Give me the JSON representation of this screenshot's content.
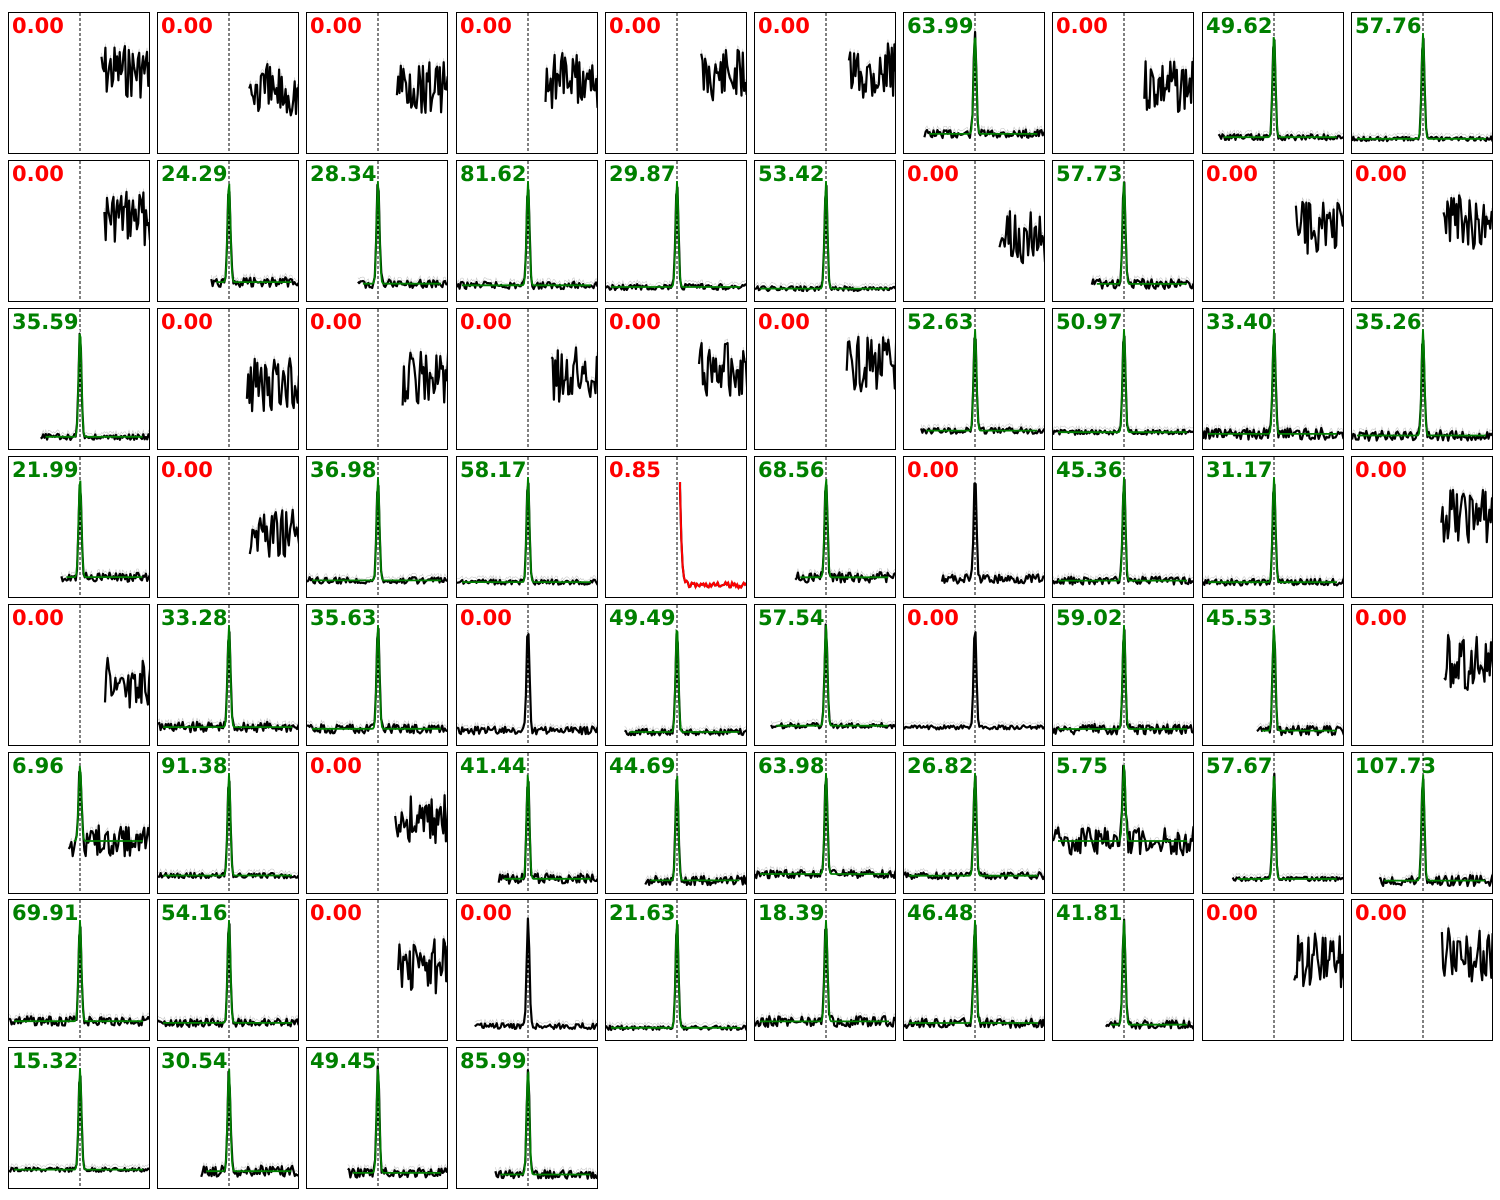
{
  "colors": {
    "good": "#008000",
    "bad": "#ff0000",
    "trace": "#000000",
    "noise_band": "#c8c8c8",
    "marker": "#000000"
  },
  "chart_data": {
    "type": "line",
    "layout": "grid of small multiples, 10 columns x 8 rows, 74 panels",
    "title": "",
    "axes": {
      "ticks": "none",
      "x_marker": "dashed vertical line at center"
    },
    "panels": [
      {
        "value": "0.00",
        "status": "fail",
        "shape": "late"
      },
      {
        "value": "0.00",
        "status": "fail",
        "shape": "late"
      },
      {
        "value": "0.00",
        "status": "fail",
        "shape": "late"
      },
      {
        "value": "0.00",
        "status": "fail",
        "shape": "late"
      },
      {
        "value": "0.00",
        "status": "fail",
        "shape": "late"
      },
      {
        "value": "0.00",
        "status": "fail",
        "shape": "late"
      },
      {
        "value": "63.99",
        "status": "pass",
        "shape": "peak"
      },
      {
        "value": "0.00",
        "status": "fail",
        "shape": "late"
      },
      {
        "value": "49.62",
        "status": "pass",
        "shape": "peak"
      },
      {
        "value": "57.76",
        "status": "pass",
        "shape": "peak"
      },
      {
        "value": "0.00",
        "status": "fail",
        "shape": "late"
      },
      {
        "value": "24.29",
        "status": "pass",
        "shape": "peak"
      },
      {
        "value": "28.34",
        "status": "pass",
        "shape": "peak"
      },
      {
        "value": "81.62",
        "status": "pass",
        "shape": "peak"
      },
      {
        "value": "29.87",
        "status": "pass",
        "shape": "peak"
      },
      {
        "value": "53.42",
        "status": "pass",
        "shape": "peak"
      },
      {
        "value": "0.00",
        "status": "fail",
        "shape": "late"
      },
      {
        "value": "57.73",
        "status": "pass",
        "shape": "peak"
      },
      {
        "value": "0.00",
        "status": "fail",
        "shape": "late"
      },
      {
        "value": "0.00",
        "status": "fail",
        "shape": "late"
      },
      {
        "value": "35.59",
        "status": "pass",
        "shape": "peak"
      },
      {
        "value": "0.00",
        "status": "fail",
        "shape": "late"
      },
      {
        "value": "0.00",
        "status": "fail",
        "shape": "late"
      },
      {
        "value": "0.00",
        "status": "fail",
        "shape": "late"
      },
      {
        "value": "0.00",
        "status": "fail",
        "shape": "late"
      },
      {
        "value": "0.00",
        "status": "fail",
        "shape": "late"
      },
      {
        "value": "52.63",
        "status": "pass",
        "shape": "peak"
      },
      {
        "value": "50.97",
        "status": "pass",
        "shape": "peak"
      },
      {
        "value": "33.40",
        "status": "pass",
        "shape": "peak"
      },
      {
        "value": "35.26",
        "status": "pass",
        "shape": "peak"
      },
      {
        "value": "21.99",
        "status": "pass",
        "shape": "peak"
      },
      {
        "value": "0.00",
        "status": "fail",
        "shape": "late"
      },
      {
        "value": "36.98",
        "status": "pass",
        "shape": "peak"
      },
      {
        "value": "58.17",
        "status": "pass",
        "shape": "peak"
      },
      {
        "value": "0.85",
        "status": "fail",
        "shape": "decay"
      },
      {
        "value": "68.56",
        "status": "pass",
        "shape": "peak"
      },
      {
        "value": "0.00",
        "status": "fail",
        "shape": "peak"
      },
      {
        "value": "45.36",
        "status": "pass",
        "shape": "peak"
      },
      {
        "value": "31.17",
        "status": "pass",
        "shape": "peak"
      },
      {
        "value": "0.00",
        "status": "fail",
        "shape": "late"
      },
      {
        "value": "0.00",
        "status": "fail",
        "shape": "late"
      },
      {
        "value": "33.28",
        "status": "pass",
        "shape": "peak"
      },
      {
        "value": "35.63",
        "status": "pass",
        "shape": "peak"
      },
      {
        "value": "0.00",
        "status": "fail",
        "shape": "peak"
      },
      {
        "value": "49.49",
        "status": "pass",
        "shape": "peak"
      },
      {
        "value": "57.54",
        "status": "pass",
        "shape": "peak"
      },
      {
        "value": "0.00",
        "status": "fail",
        "shape": "peak"
      },
      {
        "value": "59.02",
        "status": "pass",
        "shape": "peak"
      },
      {
        "value": "45.53",
        "status": "pass",
        "shape": "peak"
      },
      {
        "value": "0.00",
        "status": "fail",
        "shape": "late"
      },
      {
        "value": "6.96",
        "status": "pass",
        "shape": "peak"
      },
      {
        "value": "91.38",
        "status": "pass",
        "shape": "peak"
      },
      {
        "value": "0.00",
        "status": "fail",
        "shape": "late"
      },
      {
        "value": "41.44",
        "status": "pass",
        "shape": "peak"
      },
      {
        "value": "44.69",
        "status": "pass",
        "shape": "peak"
      },
      {
        "value": "63.98",
        "status": "pass",
        "shape": "peak"
      },
      {
        "value": "26.82",
        "status": "pass",
        "shape": "peak"
      },
      {
        "value": "5.75",
        "status": "pass",
        "shape": "peak"
      },
      {
        "value": "57.67",
        "status": "pass",
        "shape": "peak"
      },
      {
        "value": "107.73",
        "status": "pass",
        "shape": "peak"
      },
      {
        "value": "69.91",
        "status": "pass",
        "shape": "peak"
      },
      {
        "value": "54.16",
        "status": "pass",
        "shape": "peak"
      },
      {
        "value": "0.00",
        "status": "fail",
        "shape": "late"
      },
      {
        "value": "0.00",
        "status": "fail",
        "shape": "peak"
      },
      {
        "value": "21.63",
        "status": "pass",
        "shape": "peak"
      },
      {
        "value": "18.39",
        "status": "pass",
        "shape": "peak"
      },
      {
        "value": "46.48",
        "status": "pass",
        "shape": "peak"
      },
      {
        "value": "41.81",
        "status": "pass",
        "shape": "peak"
      },
      {
        "value": "0.00",
        "status": "fail",
        "shape": "late"
      },
      {
        "value": "0.00",
        "status": "fail",
        "shape": "late"
      },
      {
        "value": "15.32",
        "status": "pass",
        "shape": "peak"
      },
      {
        "value": "30.54",
        "status": "pass",
        "shape": "peak"
      },
      {
        "value": "49.45",
        "status": "pass",
        "shape": "peak"
      },
      {
        "value": "85.99",
        "status": "pass",
        "shape": "peak"
      }
    ]
  }
}
